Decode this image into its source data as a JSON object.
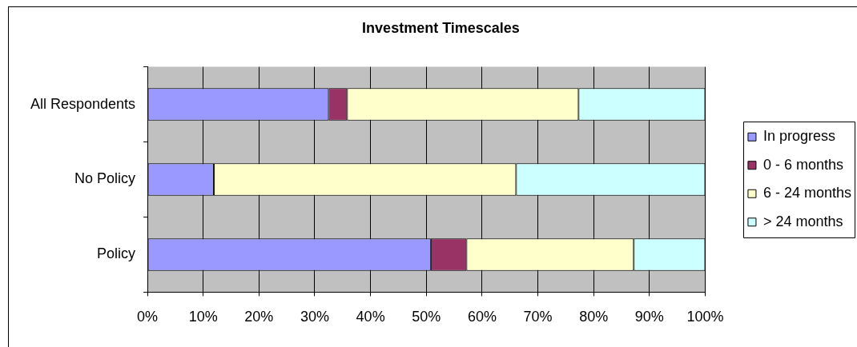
{
  "chart_data": {
    "type": "bar",
    "title": "Investment Timescales",
    "orientation": "horizontal",
    "stacked": true,
    "categories": [
      "All Respondents",
      "No Policy",
      "Policy"
    ],
    "series": [
      {
        "name": "In progress",
        "color": "#9999ff",
        "values": [
          32.5,
          11.9,
          50.8
        ]
      },
      {
        "name": "0 - 6 months",
        "color": "#993366",
        "values": [
          3.3,
          0,
          6.4
        ]
      },
      {
        "name": "6 - 24 months",
        "color": "#ffffcc",
        "values": [
          41.5,
          54.2,
          30
        ]
      },
      {
        "name": "> 24 months",
        "color": "#ccffff",
        "values": [
          22.7,
          33.9,
          12.8
        ]
      }
    ],
    "xlim": [
      0,
      100
    ],
    "xticks": [
      {
        "value": 0,
        "label": "0%"
      },
      {
        "value": 10,
        "label": "10%"
      },
      {
        "value": 20,
        "label": "20%"
      },
      {
        "value": 30,
        "label": "30%"
      },
      {
        "value": 40,
        "label": "40%"
      },
      {
        "value": 50,
        "label": "50%"
      },
      {
        "value": 60,
        "label": "60%"
      },
      {
        "value": 70,
        "label": "70%"
      },
      {
        "value": 80,
        "label": "80%"
      },
      {
        "value": 90,
        "label": "90%"
      },
      {
        "value": 100,
        "label": "100%"
      }
    ],
    "grid": "x",
    "legend": "right"
  }
}
